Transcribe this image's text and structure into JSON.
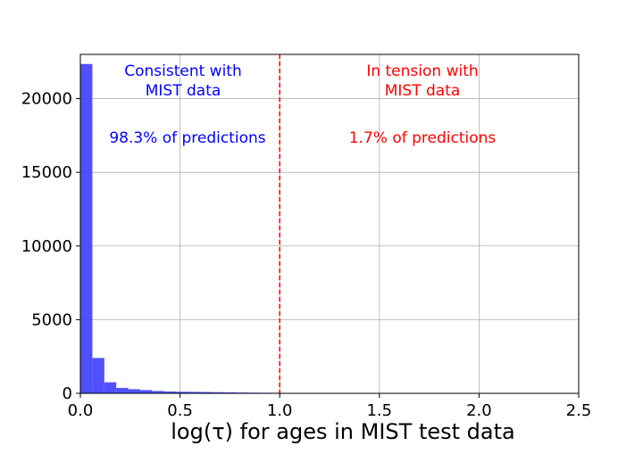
{
  "chart_data": {
    "type": "bar",
    "subtype": "histogram",
    "xlabel": "log(τ) for ages in MIST test data",
    "ylabel": "",
    "xlim": [
      0.0,
      2.5
    ],
    "ylim": [
      0,
      23000
    ],
    "xticks": [
      0.0,
      0.5,
      1.0,
      1.5,
      2.0,
      2.5
    ],
    "xtick_labels": [
      "0.0",
      "0.5",
      "1.0",
      "1.5",
      "2.0",
      "2.5"
    ],
    "yticks": [
      0,
      5000,
      10000,
      15000,
      20000
    ],
    "ytick_labels": [
      "0",
      "5000",
      "10000",
      "15000",
      "20000"
    ],
    "grid": true,
    "bar_color": "#4747ff",
    "bin_width": 0.06,
    "bins": [
      {
        "x0": 0.0,
        "x1": 0.06,
        "count": 22350
      },
      {
        "x0": 0.06,
        "x1": 0.12,
        "count": 2400
      },
      {
        "x0": 0.12,
        "x1": 0.18,
        "count": 750
      },
      {
        "x0": 0.18,
        "x1": 0.24,
        "count": 370
      },
      {
        "x0": 0.24,
        "x1": 0.3,
        "count": 280
      },
      {
        "x0": 0.3,
        "x1": 0.36,
        "count": 220
      },
      {
        "x0": 0.36,
        "x1": 0.42,
        "count": 160
      },
      {
        "x0": 0.42,
        "x1": 0.48,
        "count": 130
      },
      {
        "x0": 0.48,
        "x1": 0.54,
        "count": 110
      },
      {
        "x0": 0.54,
        "x1": 0.6,
        "count": 100
      },
      {
        "x0": 0.6,
        "x1": 0.66,
        "count": 90
      },
      {
        "x0": 0.66,
        "x1": 0.72,
        "count": 80
      },
      {
        "x0": 0.72,
        "x1": 0.78,
        "count": 70
      },
      {
        "x0": 0.78,
        "x1": 0.84,
        "count": 55
      },
      {
        "x0": 0.84,
        "x1": 0.9,
        "count": 45
      },
      {
        "x0": 0.9,
        "x1": 0.96,
        "count": 40
      },
      {
        "x0": 0.96,
        "x1": 1.02,
        "count": 35
      },
      {
        "x0": 1.02,
        "x1": 1.08,
        "count": 25
      },
      {
        "x0": 1.08,
        "x1": 1.14,
        "count": 20
      },
      {
        "x0": 1.14,
        "x1": 1.2,
        "count": 15
      }
    ],
    "threshold_line": {
      "x": 1.0,
      "color": "#ff0000",
      "style": "dashed"
    },
    "annotations": [
      {
        "lines": [
          "Consistent with",
          "MIST data"
        ],
        "color": "#0000ff",
        "region": "left"
      },
      {
        "lines": [
          "98.3% of predictions"
        ],
        "color": "#0000ff",
        "region": "left"
      },
      {
        "lines": [
          "In tension with",
          "MIST data"
        ],
        "color": "#ff0000",
        "region": "right"
      },
      {
        "lines": [
          "1.7% of predictions"
        ],
        "color": "#ff0000",
        "region": "right"
      }
    ]
  }
}
